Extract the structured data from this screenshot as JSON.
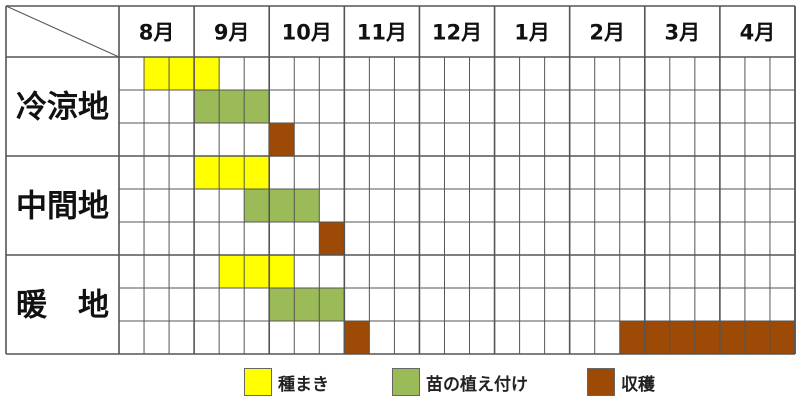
{
  "chart_data": {
    "type": "table",
    "columns": [
      "8月",
      "9月",
      "10月",
      "11月",
      "12月",
      "1月",
      "2月",
      "3月",
      "4月"
    ],
    "rows": [
      {
        "label": "冷涼地",
        "tasks": [
          {
            "task": "種まき",
            "start": 1,
            "end": 4
          },
          {
            "task": "苗の植え付け",
            "start": 3,
            "end": 6
          },
          {
            "task": "収穫",
            "start": 6,
            "end": 7
          }
        ]
      },
      {
        "label": "中間地",
        "tasks": [
          {
            "task": "種まき",
            "start": 3,
            "end": 6
          },
          {
            "task": "苗の植え付け",
            "start": 5,
            "end": 8
          },
          {
            "task": "収穫",
            "start": 8,
            "end": 9
          }
        ]
      },
      {
        "label": "暖　地",
        "tasks": [
          {
            "task": "種まき",
            "start": 4,
            "end": 7
          },
          {
            "task": "苗の植え付け",
            "start": 6,
            "end": 9
          },
          {
            "task": "収穫",
            "start": 9,
            "end": 10
          },
          {
            "task": "収穫",
            "start": 20,
            "end": 27
          }
        ]
      }
    ],
    "periods_per_month": 3,
    "legend": [
      {
        "task": "種まき",
        "color": "#ffff00"
      },
      {
        "task": "苗の植え付け",
        "color": "#9bbb59"
      },
      {
        "task": "収穫",
        "color": "#9c4a06"
      }
    ]
  }
}
